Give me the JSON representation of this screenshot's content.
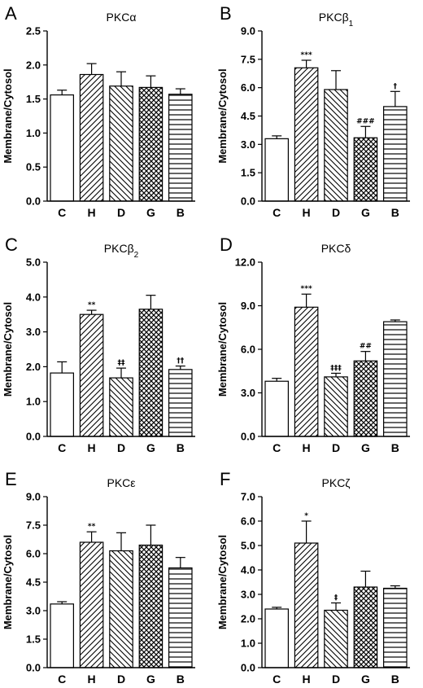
{
  "chart_data": [
    {
      "panel": "A",
      "title": "PKCα",
      "type": "bar",
      "ylabel": "Membrane/Cytosol",
      "categories": [
        "C",
        "H",
        "D",
        "G",
        "B"
      ],
      "values": [
        1.56,
        1.86,
        1.69,
        1.67,
        1.57
      ],
      "errors": [
        0.07,
        0.16,
        0.21,
        0.17,
        0.08
      ],
      "annotations": [
        "",
        "",
        "",
        "",
        ""
      ],
      "ylim": [
        0,
        2.5
      ],
      "yticks": [
        "0.0",
        "0.5",
        "1.0",
        "1.5",
        "2.0",
        "2.5"
      ],
      "patterns": [
        "none",
        "diag-up",
        "diag-down",
        "crosshatch",
        "horizontal"
      ]
    },
    {
      "panel": "B",
      "title": "PKCβ1",
      "type": "bar",
      "ylabel": "Membrane/Cytosol",
      "categories": [
        "C",
        "H",
        "D",
        "G",
        "B"
      ],
      "values": [
        3.3,
        7.05,
        5.9,
        3.35,
        5.0
      ],
      "errors": [
        0.15,
        0.4,
        1.0,
        0.6,
        0.8
      ],
      "annotations": [
        "",
        "***",
        "",
        "###",
        "†"
      ],
      "ylim": [
        0,
        9.0
      ],
      "yticks": [
        "0.0",
        "1.5",
        "3.0",
        "4.5",
        "6.0",
        "7.5",
        "9.0"
      ],
      "patterns": [
        "none",
        "diag-up",
        "diag-down",
        "crosshatch",
        "horizontal"
      ]
    },
    {
      "panel": "C",
      "title": "PKCβ2",
      "type": "bar",
      "ylabel": "Membrane/Cytosol",
      "categories": [
        "C",
        "H",
        "D",
        "G",
        "B"
      ],
      "values": [
        1.82,
        3.5,
        1.68,
        3.65,
        1.92
      ],
      "errors": [
        0.32,
        0.12,
        0.28,
        0.4,
        0.1
      ],
      "annotations": [
        "",
        "**",
        "‡‡",
        "",
        "††"
      ],
      "ylim": [
        0,
        5.0
      ],
      "yticks": [
        "0.0",
        "1.0",
        "2.0",
        "3.0",
        "4.0",
        "5.0"
      ],
      "patterns": [
        "none",
        "diag-up",
        "diag-down",
        "crosshatch",
        "horizontal"
      ]
    },
    {
      "panel": "D",
      "title": "PKCδ",
      "type": "bar",
      "ylabel": "Membrane/Cytosol",
      "categories": [
        "C",
        "H",
        "D",
        "G",
        "B"
      ],
      "values": [
        3.8,
        8.9,
        4.1,
        5.2,
        7.9
      ],
      "errors": [
        0.2,
        0.9,
        0.25,
        0.65,
        0.12
      ],
      "annotations": [
        "",
        "***",
        "‡‡‡",
        "##",
        ""
      ],
      "ylim": [
        0,
        12.0
      ],
      "yticks": [
        "0.0",
        "3.0",
        "6.0",
        "9.0",
        "12.0"
      ],
      "patterns": [
        "none",
        "diag-up",
        "diag-down",
        "crosshatch",
        "horizontal"
      ]
    },
    {
      "panel": "E",
      "title": "PKCε",
      "type": "bar",
      "ylabel": "Membrane/Cytosol",
      "categories": [
        "C",
        "H",
        "D",
        "G",
        "B"
      ],
      "values": [
        3.35,
        6.6,
        6.15,
        6.45,
        5.25
      ],
      "errors": [
        0.12,
        0.55,
        0.95,
        1.05,
        0.55
      ],
      "annotations": [
        "",
        "**",
        "",
        "",
        ""
      ],
      "ylim": [
        0,
        9.0
      ],
      "yticks": [
        "0.0",
        "1.5",
        "3.0",
        "4.5",
        "6.0",
        "7.5",
        "9.0"
      ],
      "patterns": [
        "none",
        "diag-up",
        "diag-down",
        "crosshatch",
        "horizontal"
      ]
    },
    {
      "panel": "F",
      "title": "PKCζ",
      "type": "bar",
      "ylabel": "Membrane/Cytosol",
      "categories": [
        "C",
        "H",
        "D",
        "G",
        "B"
      ],
      "values": [
        2.4,
        5.1,
        2.35,
        3.3,
        3.25
      ],
      "errors": [
        0.07,
        0.9,
        0.3,
        0.65,
        0.1
      ],
      "annotations": [
        "",
        "*",
        "‡",
        "",
        ""
      ],
      "ylim": [
        0,
        7.0
      ],
      "yticks": [
        "0.0",
        "1.0",
        "2.0",
        "3.0",
        "4.0",
        "5.0",
        "6.0",
        "7.0"
      ],
      "patterns": [
        "none",
        "diag-up",
        "diag-down",
        "crosshatch",
        "horizontal"
      ]
    }
  ]
}
